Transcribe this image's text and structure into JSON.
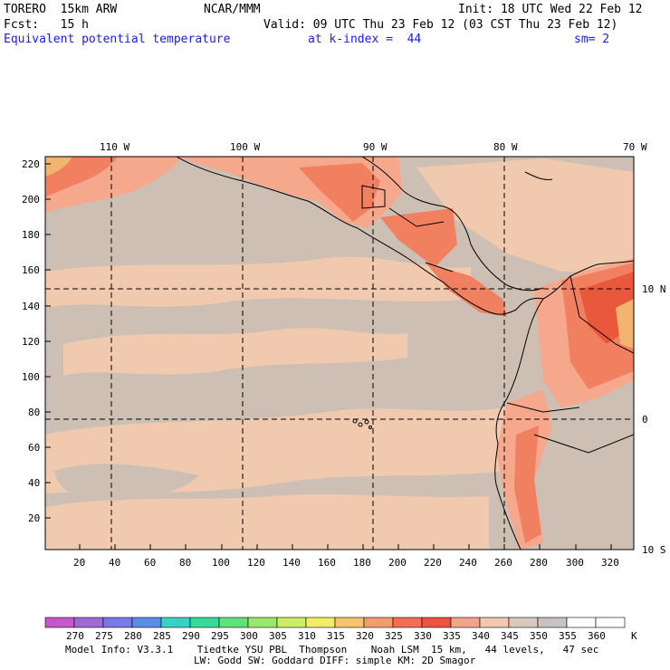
{
  "header": {
    "model": "TORERO  15km ARW",
    "center": "NCAR/MMM",
    "init": "Init: 18 UTC Wed 22 Feb 12",
    "fcst": "Fcst:   15 h",
    "valid": "Valid: 09 UTC Thu 23 Feb 12 (03 CST Thu 23 Feb 12)",
    "field": "Equivalent potential temperature",
    "level": "at k-index =  44",
    "smooth": "sm= 2"
  },
  "map": {
    "top_lon_labels": [
      "110 W",
      "100 W",
      "90 W",
      "80 W",
      "70 W"
    ],
    "right_lat_labels": [
      "10 N",
      "0",
      "10 S"
    ],
    "left_y_ticks": [
      "220",
      "200",
      "180",
      "160",
      "140",
      "120",
      "100",
      "80",
      "60",
      "40",
      "20"
    ],
    "bottom_x_ticks": [
      "20",
      "40",
      "60",
      "80",
      "100",
      "120",
      "140",
      "160",
      "180",
      "200",
      "220",
      "240",
      "260",
      "280",
      "300",
      "320"
    ],
    "colors": {
      "bg_field": "#cdbfb3",
      "warm_320": "#f0c9ae",
      "warm_325": "#f5a88c",
      "warm_330": "#f08060",
      "warm_335": "#e9573d",
      "hot_345": "#f2b56f",
      "coast": "#000000",
      "grid": "#000000"
    }
  },
  "colorbar": {
    "labels": [
      "270",
      "275",
      "280",
      "285",
      "290",
      "295",
      "300",
      "305",
      "310",
      "315",
      "320",
      "325",
      "330",
      "335",
      "340",
      "345",
      "350",
      "355",
      "360"
    ],
    "unit": "K",
    "colors": [
      "#c855cc",
      "#9e6ad8",
      "#7b78e8",
      "#5a8de8",
      "#3ccfc8",
      "#3ad99a",
      "#62e07a",
      "#99e86a",
      "#ccee66",
      "#f3ec6a",
      "#f6c46a",
      "#f49c6c",
      "#f06f55",
      "#e9553f",
      "#f3a48b",
      "#f0c9b0",
      "#d9c8bc",
      "#c8c3c0",
      "#ffffff",
      "#ffffff"
    ]
  },
  "footer": {
    "line1": "Model Info: V3.3.1    Tiedtke YSU PBL  Thompson    Noah LSM  15 km,   44 levels,   47 sec",
    "line2": "LW: Godd SW: Goddard DIFF: simple KM: 2D Smagor"
  }
}
